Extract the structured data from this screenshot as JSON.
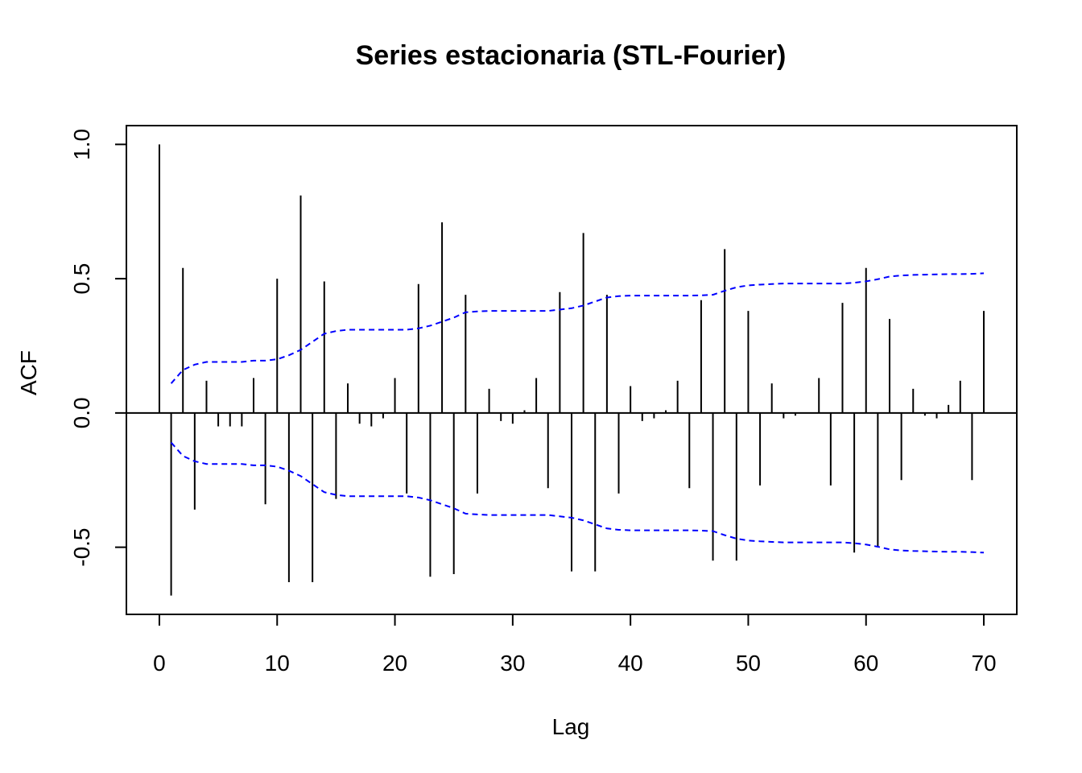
{
  "chart_data": {
    "type": "bar",
    "title": "Series estacionaria (STL-Fourier)",
    "xlabel": "Lag",
    "ylabel": "ACF",
    "xlim": [
      -2.8,
      72.8
    ],
    "ylim": [
      -0.75,
      1.07
    ],
    "x_ticks": [
      0,
      10,
      20,
      30,
      40,
      50,
      60,
      70
    ],
    "x_tick_labels": [
      "0",
      "10",
      "20",
      "30",
      "40",
      "50",
      "60",
      "70"
    ],
    "y_ticks": [
      -0.5,
      0.0,
      0.5,
      1.0
    ],
    "y_tick_labels": [
      "-0.5",
      "0.0",
      "0.5",
      "1.0"
    ],
    "grid": false,
    "lags": [
      0,
      1,
      2,
      3,
      4,
      5,
      6,
      7,
      8,
      9,
      10,
      11,
      12,
      13,
      14,
      15,
      16,
      17,
      18,
      19,
      20,
      21,
      22,
      23,
      24,
      25,
      26,
      27,
      28,
      29,
      30,
      31,
      32,
      33,
      34,
      35,
      36,
      37,
      38,
      39,
      40,
      41,
      42,
      43,
      44,
      45,
      46,
      47,
      48,
      49,
      50,
      51,
      52,
      53,
      54,
      55,
      56,
      57,
      58,
      59,
      60,
      61,
      62,
      63,
      64,
      65,
      66,
      67,
      68,
      69,
      70
    ],
    "acf": [
      1.0,
      -0.68,
      0.54,
      -0.36,
      0.12,
      -0.05,
      -0.05,
      -0.05,
      0.13,
      -0.34,
      0.5,
      -0.63,
      0.81,
      -0.63,
      0.49,
      -0.32,
      0.11,
      -0.04,
      -0.05,
      -0.02,
      0.13,
      -0.3,
      0.48,
      -0.61,
      0.71,
      -0.6,
      0.44,
      -0.3,
      0.09,
      -0.03,
      -0.04,
      0.01,
      0.13,
      -0.28,
      0.45,
      -0.59,
      0.67,
      -0.59,
      0.44,
      -0.3,
      0.1,
      -0.03,
      -0.02,
      0.01,
      0.12,
      -0.28,
      0.42,
      -0.55,
      0.61,
      -0.55,
      0.38,
      -0.27,
      0.11,
      -0.02,
      -0.01,
      0.0,
      0.13,
      -0.27,
      0.41,
      -0.52,
      0.54,
      -0.5,
      0.35,
      -0.25,
      0.09,
      -0.01,
      -0.02,
      0.03,
      0.12,
      -0.25,
      0.38
    ],
    "confidence_band": {
      "color": "#0000ff",
      "style": "dashed",
      "lags": [
        1,
        2,
        3,
        4,
        5,
        6,
        7,
        8,
        9,
        10,
        11,
        12,
        13,
        14,
        15,
        16,
        17,
        18,
        19,
        20,
        21,
        22,
        23,
        24,
        25,
        26,
        27,
        28,
        29,
        30,
        31,
        32,
        33,
        34,
        35,
        36,
        37,
        38,
        39,
        40,
        41,
        42,
        43,
        44,
        45,
        46,
        47,
        48,
        49,
        50,
        51,
        52,
        53,
        54,
        55,
        56,
        57,
        58,
        59,
        60,
        61,
        62,
        63,
        64,
        65,
        66,
        67,
        68,
        69,
        70
      ],
      "upper": [
        0.11,
        0.16,
        0.18,
        0.19,
        0.19,
        0.19,
        0.19,
        0.195,
        0.195,
        0.2,
        0.215,
        0.235,
        0.265,
        0.295,
        0.305,
        0.31,
        0.31,
        0.31,
        0.31,
        0.31,
        0.31,
        0.315,
        0.325,
        0.34,
        0.355,
        0.375,
        0.378,
        0.38,
        0.38,
        0.38,
        0.38,
        0.38,
        0.38,
        0.385,
        0.39,
        0.4,
        0.415,
        0.43,
        0.435,
        0.437,
        0.437,
        0.437,
        0.437,
        0.437,
        0.437,
        0.438,
        0.44,
        0.455,
        0.468,
        0.475,
        0.478,
        0.48,
        0.482,
        0.482,
        0.482,
        0.482,
        0.482,
        0.482,
        0.485,
        0.49,
        0.498,
        0.508,
        0.512,
        0.514,
        0.515,
        0.516,
        0.517,
        0.517,
        0.518,
        0.52
      ]
    },
    "colors": {
      "bars": "#000000",
      "zero_line": "#000000",
      "band": "#0000ff"
    }
  }
}
